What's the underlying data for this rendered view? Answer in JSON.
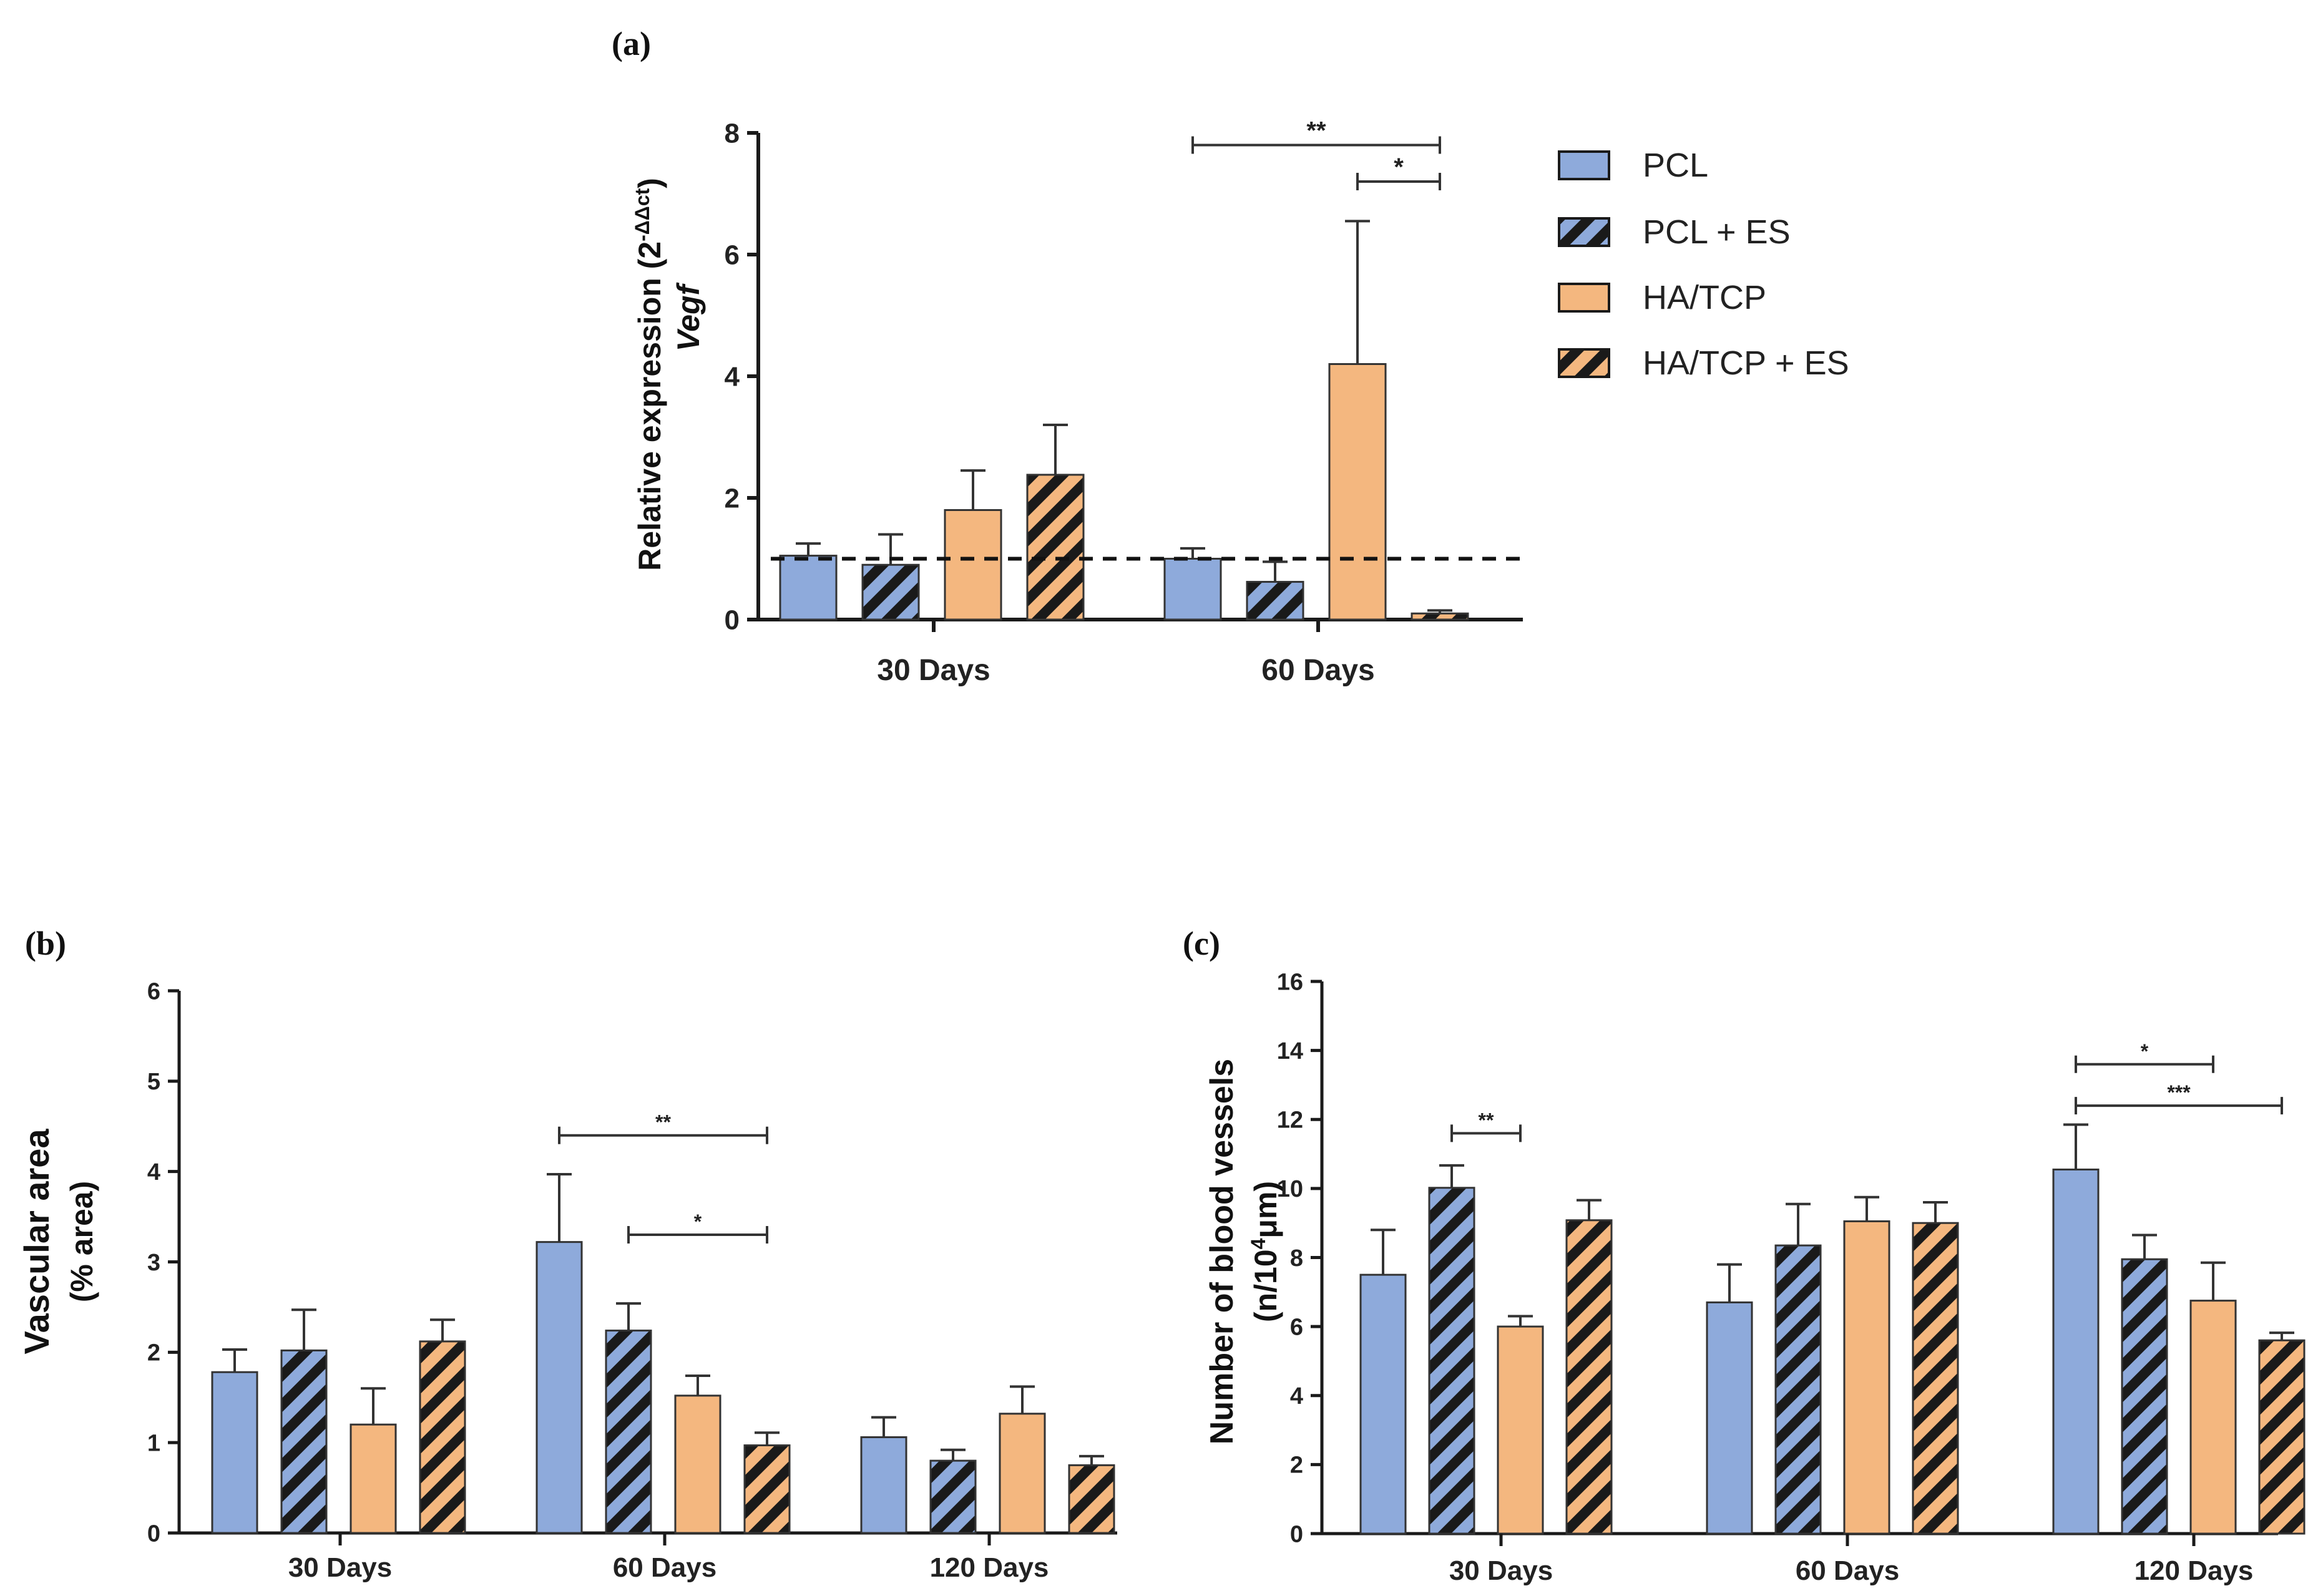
{
  "legend": {
    "items": [
      {
        "label": "PCL",
        "pattern": "solid-blue"
      },
      {
        "label": "PCL + ES",
        "pattern": "hatch-blue"
      },
      {
        "label": "HA/TCP",
        "pattern": "solid-orange"
      },
      {
        "label": "HA/TCP + ES",
        "pattern": "hatch-orange"
      }
    ],
    "placement": "right of panel (a)"
  },
  "colors": {
    "pcl": "#8eaadb",
    "hatype": "#f4b77f",
    "hatch_line": "#1a1a1a",
    "axis": "#1a1a1a"
  },
  "chart_data": [
    {
      "panel_label": "(a)",
      "type": "bar",
      "title": "",
      "xlabel": "",
      "ylabel": "Relative expression (2",
      "ylabel_sup": "-ΔΔct",
      "ylabel_close": ")",
      "ylabel2": "Vegf",
      "ylim": [
        0,
        8
      ],
      "yticks": [
        "0",
        "2",
        "4",
        "6",
        "8"
      ],
      "grid": false,
      "reference_line": 1,
      "categories": [
        "30 Days",
        "60 Days"
      ],
      "series": [
        {
          "name": "PCL",
          "values": [
            1.05,
            1.0
          ],
          "errors": [
            0.2,
            0.17
          ]
        },
        {
          "name": "PCL + ES",
          "values": [
            0.9,
            0.62
          ],
          "errors": [
            0.5,
            0.33
          ]
        },
        {
          "name": "HA/TCP",
          "values": [
            1.8,
            4.2
          ],
          "errors": [
            0.65,
            2.35
          ]
        },
        {
          "name": "HA/TCP + ES",
          "values": [
            2.38,
            0.1
          ],
          "errors": [
            0.82,
            0.05
          ]
        }
      ],
      "significance": [
        {
          "label": "**",
          "category": 1,
          "from": 0,
          "to": 3,
          "y": 7.8
        },
        {
          "label": "*",
          "category": 1,
          "from": 2,
          "to": 3,
          "y": 7.2
        }
      ]
    },
    {
      "panel_label": "(b)",
      "type": "bar",
      "title": "",
      "xlabel": "",
      "ylabel": "Vascular area",
      "ylabel2": "(% area)",
      "ylim": [
        0,
        6
      ],
      "yticks": [
        "0",
        "1",
        "2",
        "3",
        "4",
        "5",
        "6"
      ],
      "grid": false,
      "categories": [
        "30 Days",
        "60 Days",
        "120 Days"
      ],
      "series": [
        {
          "name": "PCL",
          "values": [
            1.78,
            3.22,
            1.06
          ],
          "errors": [
            0.25,
            0.75,
            0.22
          ]
        },
        {
          "name": "PCL + ES",
          "values": [
            2.02,
            2.24,
            0.8
          ],
          "errors": [
            0.45,
            0.3,
            0.12
          ]
        },
        {
          "name": "HA/TCP",
          "values": [
            1.2,
            1.52,
            1.32
          ],
          "errors": [
            0.4,
            0.22,
            0.3
          ]
        },
        {
          "name": "HA/TCP + ES",
          "values": [
            2.12,
            0.97,
            0.75
          ],
          "errors": [
            0.24,
            0.14,
            0.1
          ]
        }
      ],
      "significance": [
        {
          "label": "**",
          "category": 1,
          "from": 0,
          "to": 3,
          "y": 4.4
        },
        {
          "label": "*",
          "category": 1,
          "from": 1,
          "to": 3,
          "y": 3.3
        }
      ]
    },
    {
      "panel_label": "(c)",
      "type": "bar",
      "title": "",
      "xlabel": "",
      "ylabel": "Number of blood vessels",
      "ylabel2_pre": "(n/10",
      "ylabel2_sup": "4",
      "ylabel2_post": "μm)",
      "ylim": [
        0,
        16
      ],
      "yticks": [
        "0",
        "2",
        "4",
        "6",
        "8",
        "10",
        "12",
        "14",
        "16"
      ],
      "grid": false,
      "categories": [
        "30 Days",
        "60 Days",
        "120 Days"
      ],
      "series": [
        {
          "name": "PCL",
          "values": [
            7.5,
            6.7,
            10.55
          ],
          "errors": [
            1.3,
            1.1,
            1.3
          ]
        },
        {
          "name": "PCL + ES",
          "values": [
            10.02,
            8.35,
            7.95
          ],
          "errors": [
            0.65,
            1.2,
            0.7
          ]
        },
        {
          "name": "HA/TCP",
          "values": [
            6.0,
            9.05,
            6.75
          ],
          "errors": [
            0.3,
            0.7,
            1.1
          ]
        },
        {
          "name": "HA/TCP + ES",
          "values": [
            9.08,
            9.0,
            5.6
          ],
          "errors": [
            0.58,
            0.6,
            0.22
          ]
        }
      ],
      "significance": [
        {
          "label": "**",
          "category": 0,
          "from": 1,
          "to": 2,
          "y": 11.6
        },
        {
          "label": "*",
          "category": 2,
          "from": 0,
          "to": 2,
          "y": 13.6
        },
        {
          "label": "***",
          "category": 2,
          "from": 0,
          "to": 3,
          "y": 12.4
        }
      ]
    }
  ]
}
